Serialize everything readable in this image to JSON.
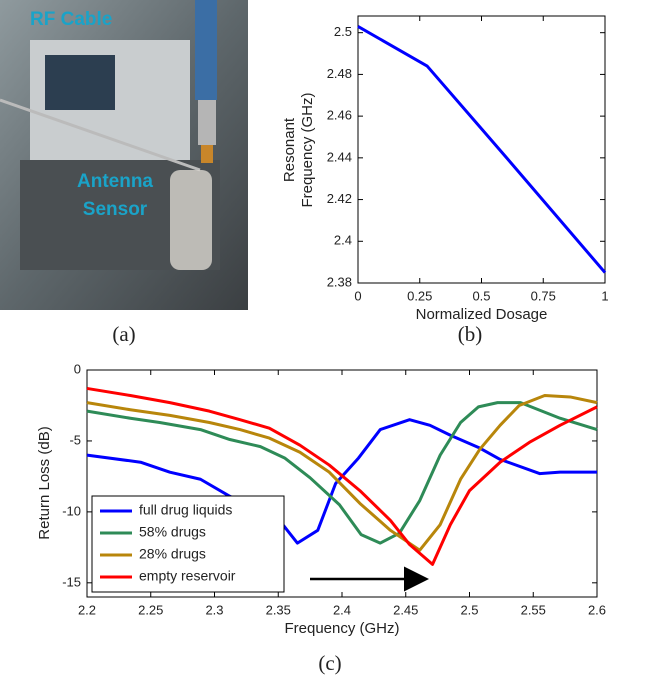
{
  "photo": {
    "labels": [
      "RF Cable",
      "Antenna",
      "Sensor"
    ],
    "caption": "(a)"
  },
  "chart_data": [
    {
      "type": "line",
      "caption": "(b)",
      "xlabel": "Normalized Dosage",
      "ylabel": [
        "Resonant",
        "Frequency (GHz)"
      ],
      "x": [
        0,
        0.28,
        0.58,
        1
      ],
      "values": [
        2.503,
        2.484,
        2.443,
        2.385
      ],
      "color": "#0000ff",
      "xlim": [
        0,
        1
      ],
      "xticks": [
        0,
        0.25,
        0.5,
        0.75,
        1
      ],
      "ylim": [
        2.38,
        2.508
      ],
      "yticks": [
        2.38,
        2.4,
        2.42,
        2.44,
        2.46,
        2.48,
        2.5
      ],
      "grid": false
    },
    {
      "type": "line",
      "caption": "(c)",
      "xlabel": "Frequency (GHz)",
      "ylabel": [
        "Return Loss (dB)"
      ],
      "xlim": [
        2.2,
        2.6
      ],
      "xticks": [
        2.2,
        2.25,
        2.3,
        2.35,
        2.4,
        2.45,
        2.5,
        2.55,
        2.6
      ],
      "ylim": [
        -16,
        0
      ],
      "yticks": [
        0,
        -5,
        -10,
        -15
      ],
      "grid": false,
      "legend": "lower left",
      "series": [
        {
          "name": "full drug liquids",
          "color": "#0000ff",
          "x": [
            2.2,
            2.242,
            2.265,
            2.289,
            2.312,
            2.336,
            2.351,
            2.365,
            2.381,
            2.395,
            2.413,
            2.43,
            2.453,
            2.469,
            2.485,
            2.508,
            2.524,
            2.555,
            2.571,
            2.6
          ],
          "values": [
            -6.0,
            -6.5,
            -7.2,
            -7.7,
            -8.9,
            -9.9,
            -10.6,
            -12.2,
            -11.3,
            -8.0,
            -6.2,
            -4.2,
            -3.5,
            -3.9,
            -4.6,
            -5.5,
            -6.3,
            -7.3,
            -7.2,
            -7.2
          ]
        },
        {
          "name": "58% drugs",
          "color": "#2e8b57",
          "x": [
            2.2,
            2.234,
            2.257,
            2.289,
            2.312,
            2.336,
            2.355,
            2.375,
            2.398,
            2.415,
            2.43,
            2.445,
            2.461,
            2.477,
            2.493,
            2.507,
            2.522,
            2.54,
            2.571,
            2.6
          ],
          "values": [
            -2.9,
            -3.4,
            -3.7,
            -4.2,
            -4.9,
            -5.4,
            -6.2,
            -7.6,
            -9.5,
            -11.6,
            -12.2,
            -11.5,
            -9.2,
            -6.0,
            -3.7,
            -2.6,
            -2.3,
            -2.3,
            -3.4,
            -4.2
          ]
        },
        {
          "name": "28% drugs",
          "color": "#b8860b",
          "x": [
            2.2,
            2.234,
            2.265,
            2.296,
            2.32,
            2.343,
            2.367,
            2.39,
            2.414,
            2.438,
            2.461,
            2.477,
            2.493,
            2.508,
            2.524,
            2.539,
            2.559,
            2.579,
            2.6
          ],
          "values": [
            -2.3,
            -2.8,
            -3.2,
            -3.7,
            -4.2,
            -4.8,
            -5.8,
            -7.2,
            -9.4,
            -11.3,
            -12.7,
            -10.9,
            -7.7,
            -5.6,
            -3.9,
            -2.5,
            -1.8,
            -1.9,
            -2.3
          ]
        },
        {
          "name": "empty reservoir",
          "color": "#ff0000",
          "x": [
            2.2,
            2.234,
            2.265,
            2.296,
            2.32,
            2.343,
            2.367,
            2.39,
            2.414,
            2.438,
            2.453,
            2.471,
            2.485,
            2.5,
            2.524,
            2.547,
            2.571,
            2.6
          ],
          "values": [
            -1.3,
            -1.8,
            -2.3,
            -2.9,
            -3.5,
            -4.1,
            -5.3,
            -6.7,
            -8.5,
            -10.6,
            -12.3,
            -13.7,
            -10.9,
            -8.5,
            -6.5,
            -5.1,
            -3.9,
            -2.6
          ]
        }
      ]
    }
  ]
}
